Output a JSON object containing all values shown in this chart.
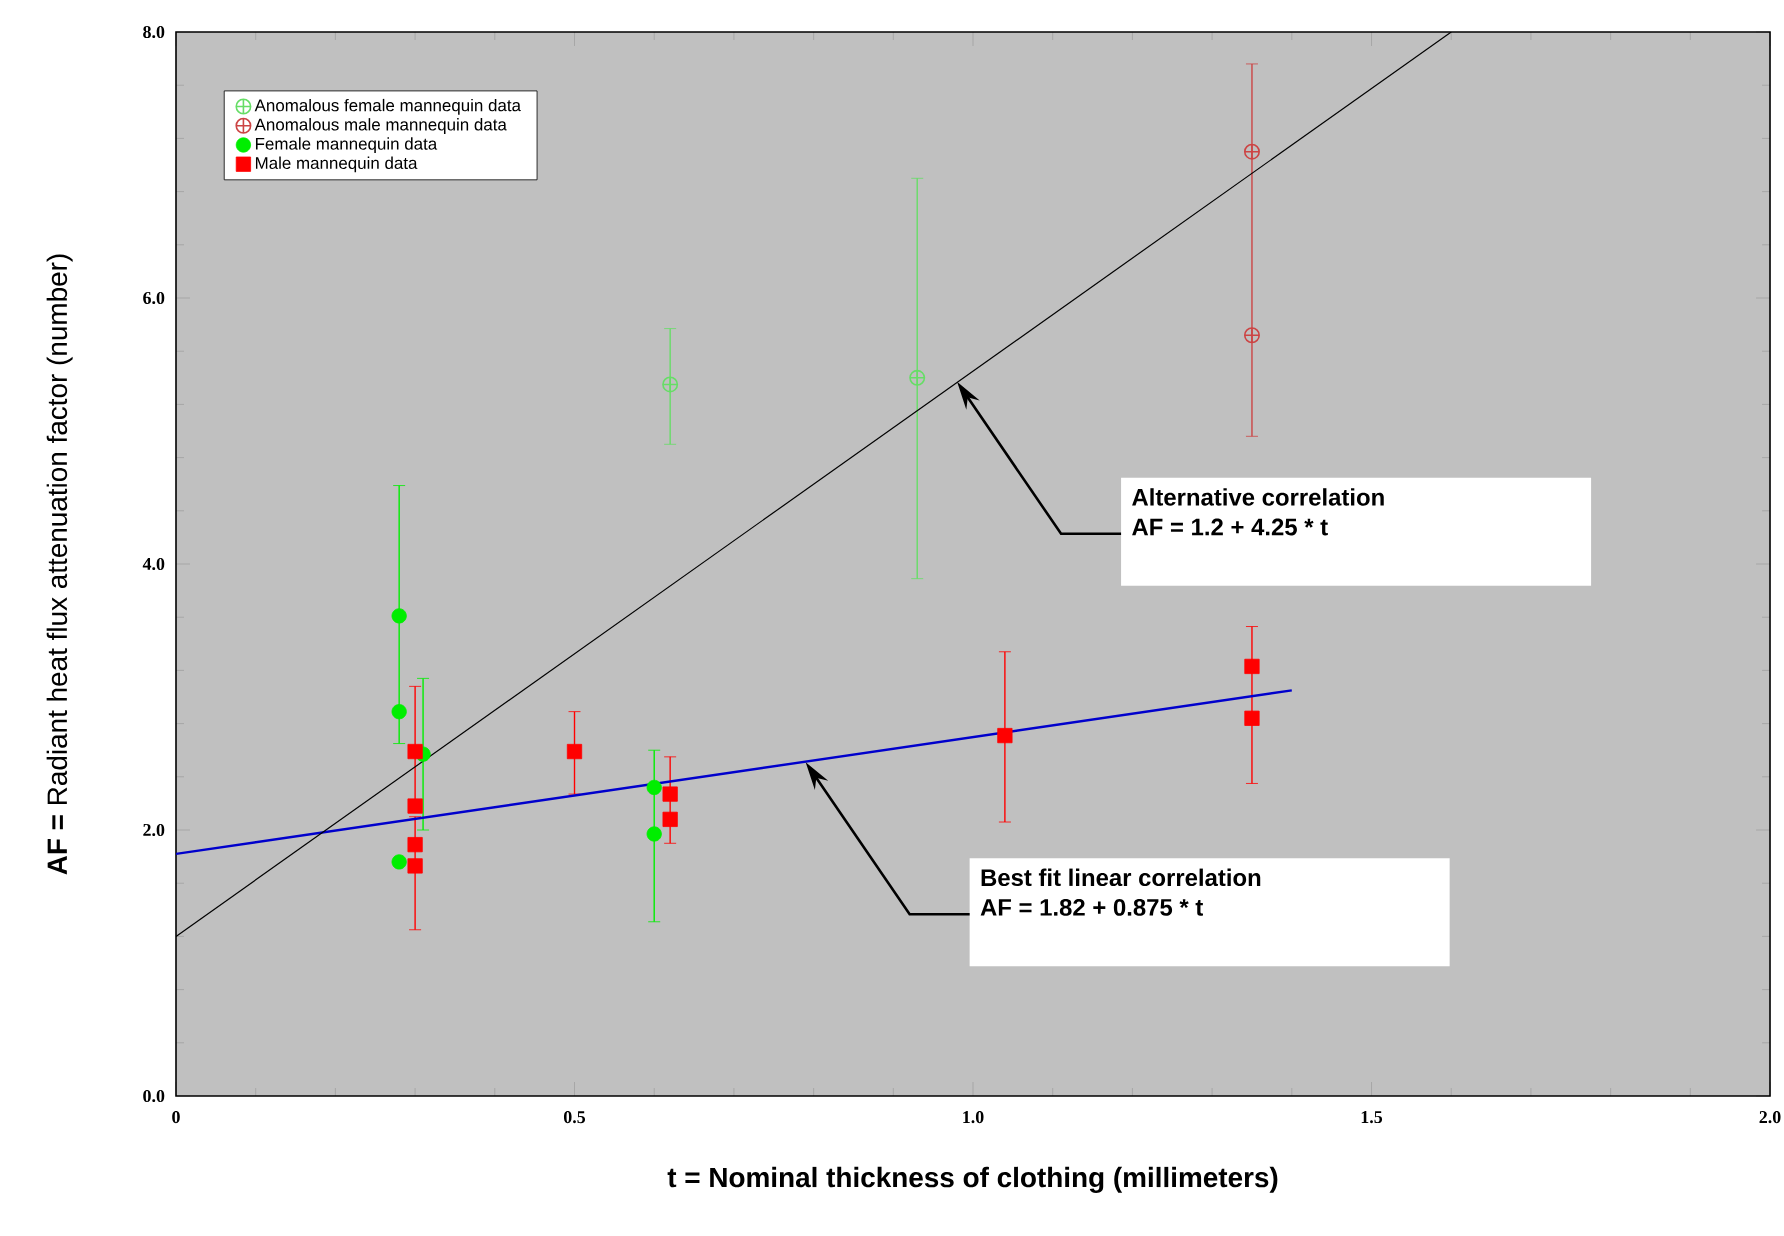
{
  "chart_data": {
    "type": "scatter",
    "xlabel": "t =  Nominal thickness of clothing (millimeters)",
    "ylabel": "**AF =**  Radiant heat flux attenuation factor (number)",
    "xlim": [
      0,
      2.0
    ],
    "ylim": [
      0,
      8.0
    ],
    "xticks": [
      0,
      0.5,
      {
        "value": 1.0,
        "label": "1.0"
      },
      1.5,
      {
        "value": 2.0,
        "label": "2.0"
      }
    ],
    "yticks": [
      {
        "value": 0,
        "label": "0.0"
      },
      {
        "value": 2,
        "label": "2.0"
      },
      {
        "value": 4,
        "label": "4.0"
      },
      {
        "value": 6,
        "label": "6.0"
      },
      {
        "value": 8,
        "label": "8.0"
      }
    ],
    "legend": "top left",
    "series": [
      {
        "name": "Anomalous female mannequin data",
        "marker": "cross",
        "color": "#66dd66",
        "x": [
          0.62,
          0.93
        ],
        "values": [
          5.35,
          5.4
        ],
        "errors": [
          [
            4.9,
            5.77
          ],
          [
            3.89,
            6.9
          ]
        ]
      },
      {
        "name": "Anomalous male mannequin data",
        "marker": "cross",
        "color": "#cc4444",
        "x": [
          1.35,
          1.35
        ],
        "values": [
          7.1,
          5.72
        ],
        "errors": [
          [
            4.96,
            7.76
          ],
          null
        ]
      },
      {
        "name": "Female mannequin data",
        "marker": "circle",
        "color": "#00ee00",
        "x": [
          0.28,
          0.28,
          0.31,
          0.28,
          0.6,
          0.6
        ],
        "values": [
          3.61,
          2.89,
          2.57,
          1.76,
          2.32,
          1.97
        ],
        "errors": [
          [
            2.65,
            4.59
          ],
          null,
          [
            2.0,
            3.14
          ],
          null,
          [
            1.31,
            2.6
          ],
          null
        ]
      },
      {
        "name": "Male mannequin data",
        "marker": "square",
        "color": "#ff0000",
        "x": [
          0.3,
          0.3,
          0.3,
          0.3,
          0.5,
          0.62,
          0.62,
          1.04,
          1.35,
          1.35
        ],
        "values": [
          2.59,
          2.18,
          1.89,
          1.73,
          2.59,
          2.27,
          2.08,
          2.71,
          3.23,
          2.84
        ],
        "errors": [
          [
            2.2,
            3.08
          ],
          null,
          null,
          [
            1.25,
            2.1
          ],
          [
            2.27,
            2.89
          ],
          [
            1.9,
            2.55
          ],
          null,
          [
            2.06,
            3.34
          ],
          [
            2.35,
            3.53
          ],
          null
        ]
      },
      {
        "type": "line",
        "color": "#0000cc",
        "x": [
          0,
          1.4
        ],
        "values": [
          1.82,
          3.05
        ]
      },
      {
        "type": "line",
        "color": "#000000",
        "x": [
          0,
          1.6
        ],
        "values": [
          1.2,
          8.0
        ]
      }
    ],
    "annotations": [
      {
        "text": "Alternative correlation",
        "x": 0.98,
        "y": 5.37
      },
      "AF  = 1.2 + 4.25 * t",
      {
        "text": "Best fit linear correlation",
        "x": 0.79,
        "y": 2.51
      },
      "AF = 1.82 + 0.875 * t"
    ]
  }
}
